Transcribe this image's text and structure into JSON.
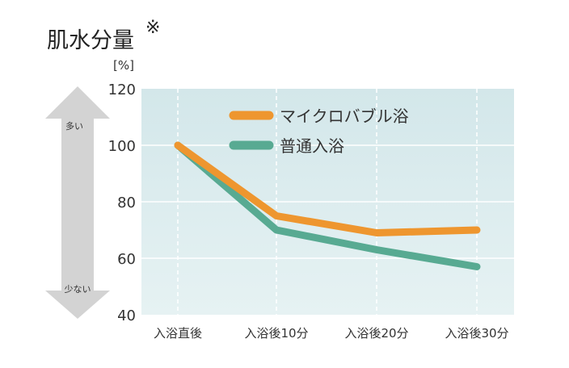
{
  "title": "肌水分量",
  "title_mark": "※",
  "arrow": {
    "top_label": "多い",
    "bottom_label": "少ない"
  },
  "chart_data": {
    "type": "line",
    "title": "肌水分量",
    "ylabel": "[%]",
    "xlabel": "",
    "categories": [
      "入浴直後",
      "入浴後10分",
      "入浴後20分",
      "入浴後30分"
    ],
    "ylim": [
      40,
      120
    ],
    "yticks": [
      40,
      60,
      80,
      100,
      120
    ],
    "grid": true,
    "legend_position": "top-center",
    "series": [
      {
        "name": "マイクロバブル浴",
        "color": "#EE962F",
        "values": [
          100,
          75,
          69,
          70
        ]
      },
      {
        "name": "普通入浴",
        "color": "#58AA92",
        "values": [
          100,
          70,
          63,
          57
        ]
      }
    ]
  }
}
